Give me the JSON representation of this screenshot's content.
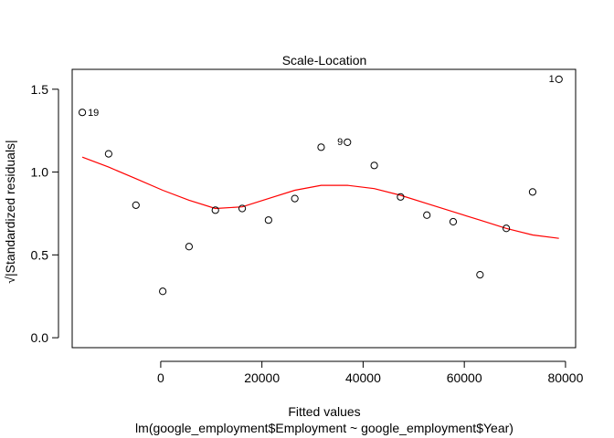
{
  "chart_data": {
    "type": "scatter",
    "title": "Scale-Location",
    "xlabel": "Fitted values",
    "subtitle": "lm(google_employment$Employment ~ google_employment$Year)",
    "ylabel": "√|Standardized residuals|",
    "xlim": [
      -17500,
      82000
    ],
    "ylim": [
      -0.06,
      1.62
    ],
    "x_ticks": [
      0,
      20000,
      40000,
      60000,
      80000
    ],
    "x_tick_labels": [
      "0",
      "20000",
      "40000",
      "60000",
      "80000"
    ],
    "y_ticks": [
      0.0,
      0.5,
      1.0,
      1.5
    ],
    "y_tick_labels": [
      "0.0",
      "0.5",
      "1.0",
      "1.5"
    ],
    "grid": false,
    "points": [
      {
        "x": -15500,
        "y": 1.36,
        "label": "19"
      },
      {
        "x": -10300,
        "y": 1.11
      },
      {
        "x": -4900,
        "y": 0.8
      },
      {
        "x": 400,
        "y": 0.28
      },
      {
        "x": 5600,
        "y": 0.55
      },
      {
        "x": 10800,
        "y": 0.77
      },
      {
        "x": 16100,
        "y": 0.78
      },
      {
        "x": 21300,
        "y": 0.71
      },
      {
        "x": 26500,
        "y": 0.84
      },
      {
        "x": 31700,
        "y": 1.15
      },
      {
        "x": 36900,
        "y": 1.18,
        "label": "9"
      },
      {
        "x": 42200,
        "y": 1.04
      },
      {
        "x": 47400,
        "y": 0.85
      },
      {
        "x": 52600,
        "y": 0.74
      },
      {
        "x": 57800,
        "y": 0.7
      },
      {
        "x": 63100,
        "y": 0.38
      },
      {
        "x": 68300,
        "y": 0.66
      },
      {
        "x": 73500,
        "y": 0.88
      },
      {
        "x": 78700,
        "y": 1.56,
        "label": "1"
      }
    ],
    "smooth_line": {
      "color": "#ff0000",
      "x": [
        -15500,
        -10300,
        -4900,
        400,
        5600,
        10800,
        16100,
        21300,
        26500,
        31700,
        36900,
        42200,
        47400,
        52600,
        57800,
        63100,
        68300,
        73500,
        78700
      ],
      "y": [
        1.09,
        1.03,
        0.96,
        0.89,
        0.83,
        0.78,
        0.79,
        0.84,
        0.89,
        0.92,
        0.92,
        0.9,
        0.86,
        0.81,
        0.76,
        0.71,
        0.66,
        0.62,
        0.6
      ]
    }
  }
}
